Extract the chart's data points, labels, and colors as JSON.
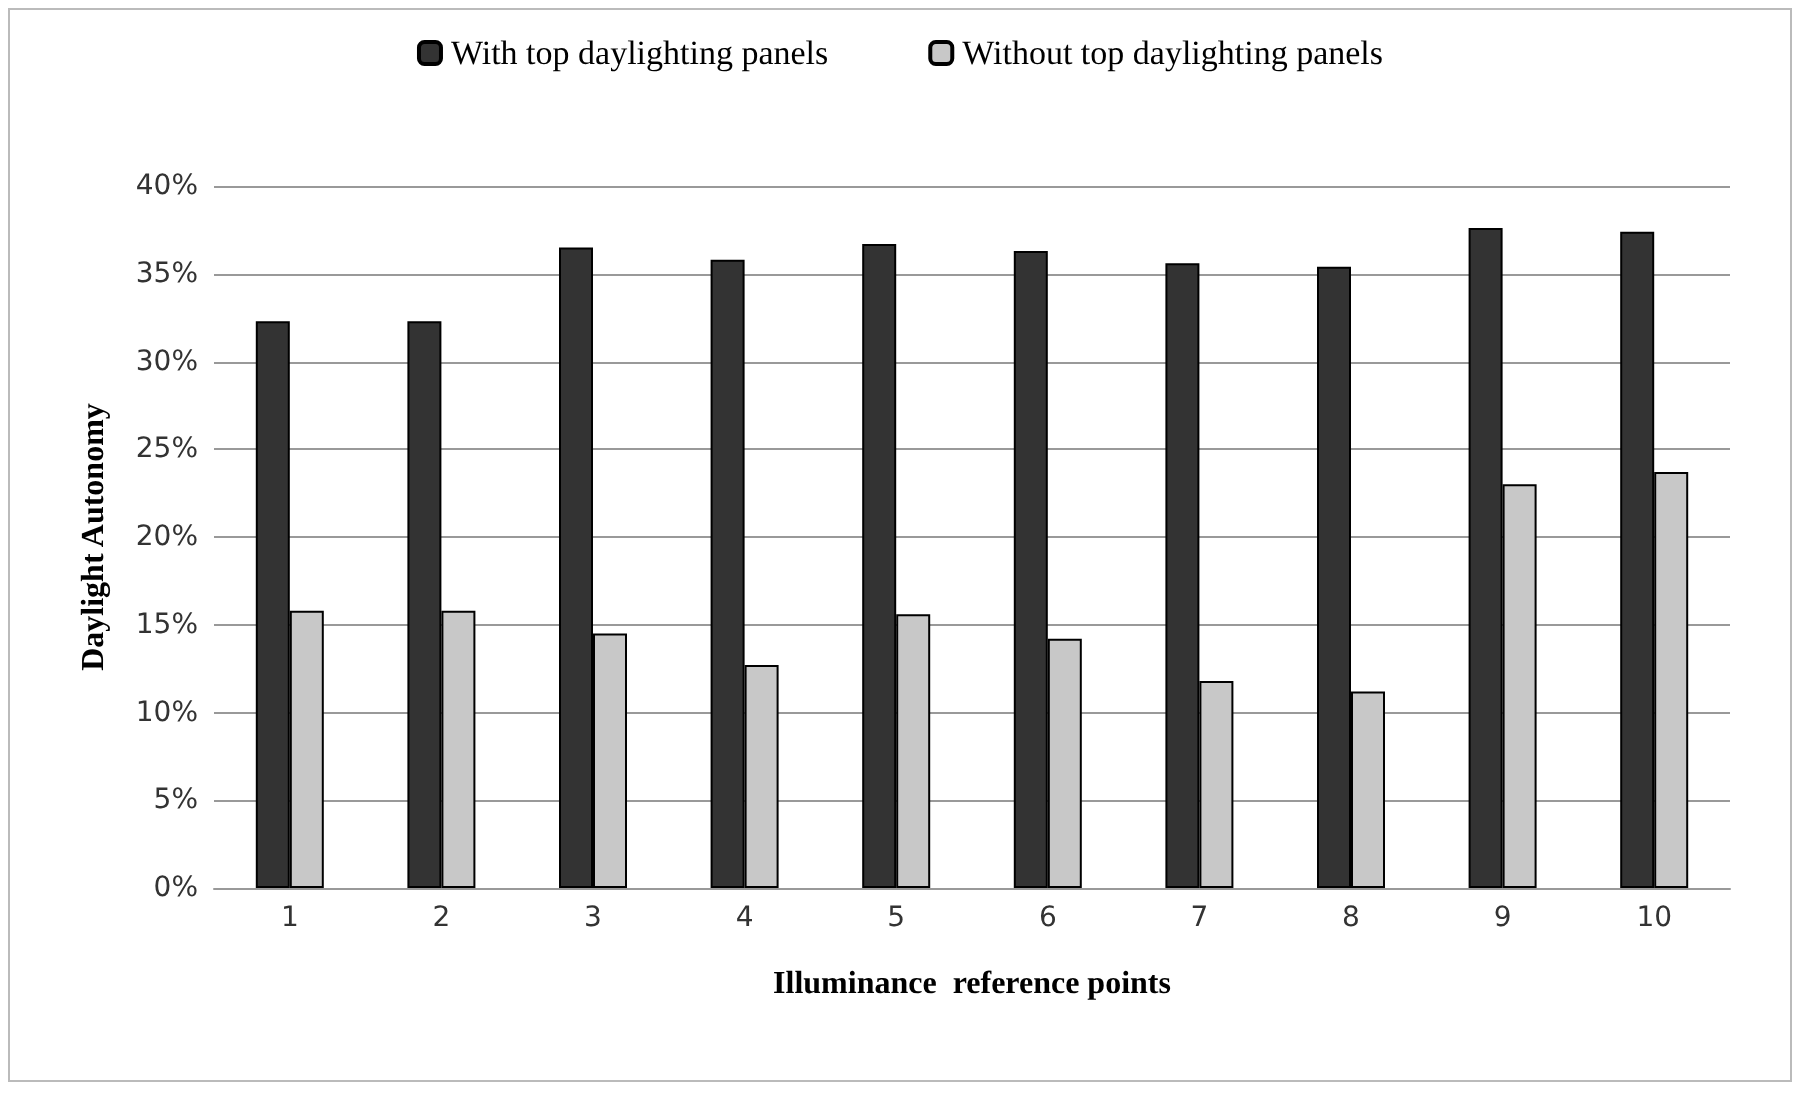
{
  "chart_data": {
    "type": "bar",
    "xlabel": "Illuminance  reference points",
    "ylabel": "Daylight Autonomy",
    "categories": [
      "1",
      "2",
      "3",
      "4",
      "5",
      "6",
      "7",
      "8",
      "9",
      "10"
    ],
    "series": [
      {
        "name": "With top daylighting panels",
        "color": "#333333",
        "values": [
          32.3,
          32.3,
          36.5,
          35.8,
          36.7,
          36.3,
          35.6,
          35.4,
          37.6,
          37.4
        ]
      },
      {
        "name": "Without top daylighting panels",
        "color": "#c8c8c8",
        "values": [
          15.8,
          15.8,
          14.5,
          12.7,
          15.6,
          14.2,
          11.8,
          11.2,
          23.0,
          23.7
        ]
      }
    ],
    "ylim": [
      0,
      40
    ],
    "yticks": [
      {
        "value": 0,
        "label": "0%"
      },
      {
        "value": 5,
        "label": "5%"
      },
      {
        "value": 10,
        "label": "10%"
      },
      {
        "value": 15,
        "label": "15%"
      },
      {
        "value": 20,
        "label": "20%"
      },
      {
        "value": 25,
        "label": "25%"
      },
      {
        "value": 30,
        "label": "30%"
      },
      {
        "value": 35,
        "label": "35%"
      },
      {
        "value": 40,
        "label": "40%"
      }
    ],
    "grid": "y",
    "legend": "top"
  }
}
